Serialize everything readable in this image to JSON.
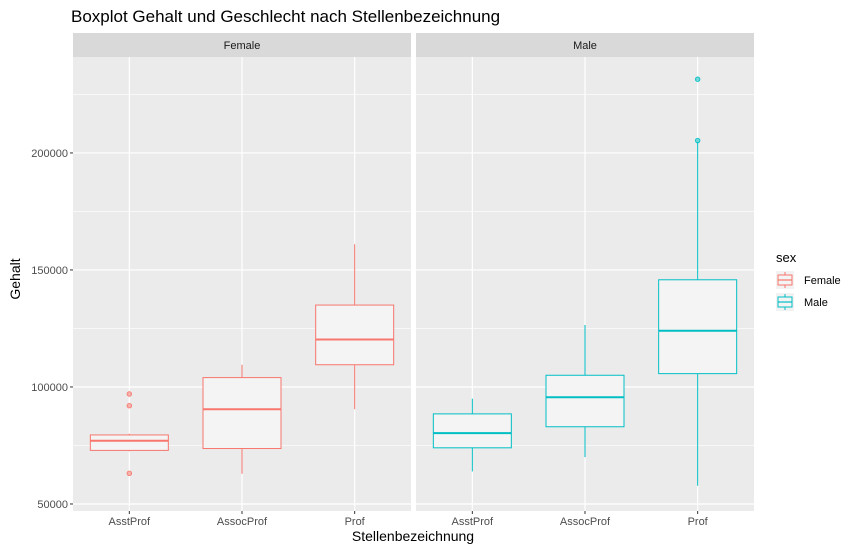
{
  "chart_data": {
    "type": "boxplot",
    "title": "Boxplot Gehalt und Geschlecht nach Stellenbezeichnung",
    "xlabel": "Stellenbezeichnung",
    "ylabel": "Gehalt",
    "categories": [
      "AsstProf",
      "AssocProf",
      "Prof"
    ],
    "y_ticks": [
      50000,
      100000,
      150000,
      200000
    ],
    "y_tick_labels": [
      "50000",
      "100000",
      "150000",
      "200000"
    ],
    "ylim": [
      47000,
      241000
    ],
    "legend": {
      "title": "sex",
      "position": "right",
      "entries": [
        "Female",
        "Male"
      ]
    },
    "colors": {
      "Female": "#F8766D",
      "Male": "#00BFC4"
    },
    "facets": [
      {
        "label": "Female",
        "series": "Female",
        "boxes": [
          {
            "category": "AsstProf",
            "whisker_low": 72500,
            "q1": 72900,
            "median": 77000,
            "q3": 79500,
            "whisker_high": 80000,
            "outliers": [
              63100,
              92000,
              97000
            ]
          },
          {
            "category": "AssocProf",
            "whisker_low": 62900,
            "q1": 73700,
            "median": 90500,
            "q3": 104000,
            "whisker_high": 109500,
            "outliers": []
          },
          {
            "category": "Prof",
            "whisker_low": 90500,
            "q1": 109500,
            "median": 120300,
            "q3": 135000,
            "whisker_high": 161000,
            "outliers": []
          }
        ]
      },
      {
        "label": "Male",
        "series": "Male",
        "boxes": [
          {
            "category": "AsstProf",
            "whisker_low": 63900,
            "q1": 74000,
            "median": 80300,
            "q3": 88500,
            "whisker_high": 95000,
            "outliers": []
          },
          {
            "category": "AssocProf",
            "whisker_low": 70000,
            "q1": 83000,
            "median": 95600,
            "q3": 105000,
            "whisker_high": 126500,
            "outliers": []
          },
          {
            "category": "Prof",
            "whisker_low": 57800,
            "q1": 105700,
            "median": 124000,
            "q3": 145800,
            "whisker_high": 204700,
            "outliers": [
              205300,
              231500
            ]
          }
        ]
      }
    ]
  }
}
